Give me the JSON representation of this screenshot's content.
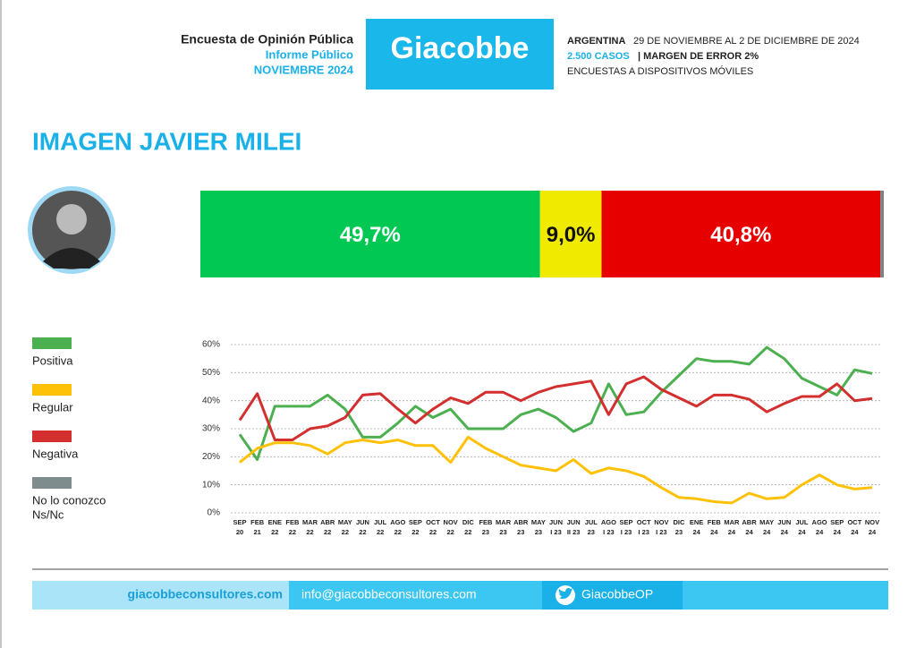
{
  "header": {
    "survey": "Encuesta de Opinión Pública",
    "report": "Informe Público",
    "month": "NOVIEMBRE 2024",
    "brand": "Giacobbe",
    "country": "ARGENTINA",
    "dates": "29 DE NOVIEMBRE AL 2 DE DICIEMBRE DE 2024",
    "cases": "2.500 CASOS",
    "margin": "| MARGEN DE ERROR 2%",
    "method": "ENCUESTAS A DISPOSITIVOS MÓVILES"
  },
  "chart_data": [
    {
      "type": "stacked_bar",
      "title": "IMAGEN JAVIER MILEI",
      "series": [
        {
          "name": "Positiva",
          "color": "#00c853",
          "values": [
            49.7
          ],
          "value_labels": [
            "49,7%"
          ]
        },
        {
          "name": "Regular",
          "color": "#f0ea00",
          "values": [
            9.0
          ],
          "value_labels": [
            "9,0%"
          ]
        },
        {
          "name": "Negativa",
          "color": "#e60000",
          "values": [
            40.8
          ],
          "value_labels": [
            "40,8%"
          ]
        },
        {
          "name": "No lo conozco Ns/Nc",
          "color": "#808080",
          "values": [
            0.5
          ]
        }
      ]
    },
    {
      "type": "line",
      "categories": [
        [
          "SEP",
          "20"
        ],
        [
          "FEB",
          "21"
        ],
        [
          "ENE",
          "22"
        ],
        [
          "FEB",
          "22"
        ],
        [
          "MAR",
          "22"
        ],
        [
          "ABR",
          "22"
        ],
        [
          "MAY",
          "22"
        ],
        [
          "JUN",
          "22"
        ],
        [
          "JUL",
          "22"
        ],
        [
          "AGO",
          "22"
        ],
        [
          "SEP",
          "22"
        ],
        [
          "OCT",
          "22"
        ],
        [
          "NOV",
          "22"
        ],
        [
          "DIC",
          "22"
        ],
        [
          "FEB",
          "23"
        ],
        [
          "MAR",
          "23"
        ],
        [
          "ABR",
          "23"
        ],
        [
          "MAY",
          "23"
        ],
        [
          "JUN",
          "I 23"
        ],
        [
          "JUN",
          "II 23"
        ],
        [
          "JUL",
          "23"
        ],
        [
          "AGO",
          "I 23"
        ],
        [
          "SEP",
          "I 23"
        ],
        [
          "OCT",
          "I 23"
        ],
        [
          "NOV",
          "I 23"
        ],
        [
          "DIC",
          "23"
        ],
        [
          "ENE",
          "24"
        ],
        [
          "FEB",
          "24"
        ],
        [
          "MAR",
          "24"
        ],
        [
          "ABR",
          "24"
        ],
        [
          "MAY",
          "24"
        ],
        [
          "JUN",
          "24"
        ],
        [
          "JUL",
          "24"
        ],
        [
          "AGO",
          "24"
        ],
        [
          "SEP",
          "24"
        ],
        [
          "OCT",
          "24"
        ],
        [
          "NOV",
          "24"
        ]
      ],
      "series": [
        {
          "name": "Positiva",
          "color": "#4caf50",
          "values": [
            28,
            19,
            38,
            38,
            38,
            42,
            37,
            27,
            27,
            32,
            38,
            34,
            37,
            30,
            30,
            30,
            35,
            37,
            34,
            29,
            32,
            46,
            35,
            36,
            43,
            49,
            55,
            54,
            54,
            53,
            59,
            55,
            48,
            45,
            42,
            51,
            49.7
          ]
        },
        {
          "name": "Regular",
          "color": "#ffc107",
          "values": [
            18,
            23,
            25,
            25,
            24,
            21,
            25,
            26,
            25,
            26,
            24,
            24,
            18,
            27,
            23,
            20,
            17,
            16,
            15,
            19,
            14,
            16,
            15,
            13,
            9,
            5.5,
            5,
            4,
            3.5,
            7,
            5,
            5.5,
            10,
            13.5,
            10,
            8.5,
            9.0
          ]
        },
        {
          "name": "Negativa",
          "color": "#d32f2f",
          "values": [
            33,
            42.5,
            26,
            26,
            30,
            31,
            34,
            42,
            42.5,
            37,
            32,
            37,
            41,
            39,
            43,
            43,
            40,
            43,
            45,
            46,
            47,
            35,
            46,
            48.5,
            44,
            41,
            38,
            42,
            42,
            40.5,
            36,
            39,
            41.5,
            41.5,
            46,
            40,
            40.8
          ]
        },
        {
          "name": [
            "No lo conozco",
            "Ns/Nc"
          ],
          "color": "#7f8c8d"
        }
      ],
      "ylim": [
        0,
        60
      ],
      "yticks": [
        {
          "value": 0,
          "label": "0%"
        },
        {
          "value": 10,
          "label": "10%"
        },
        {
          "value": 20,
          "label": "20%"
        },
        {
          "value": 30,
          "label": "30%"
        },
        {
          "value": 40,
          "label": "40%"
        },
        {
          "value": 50,
          "label": "50%"
        },
        {
          "value": 60,
          "label": "60%"
        }
      ],
      "grid": true
    }
  ],
  "footer": {
    "web": "giacobbeconsultores.com",
    "email": "info@giacobbeconsultores.com",
    "twitter": "GiacobbeOP"
  }
}
